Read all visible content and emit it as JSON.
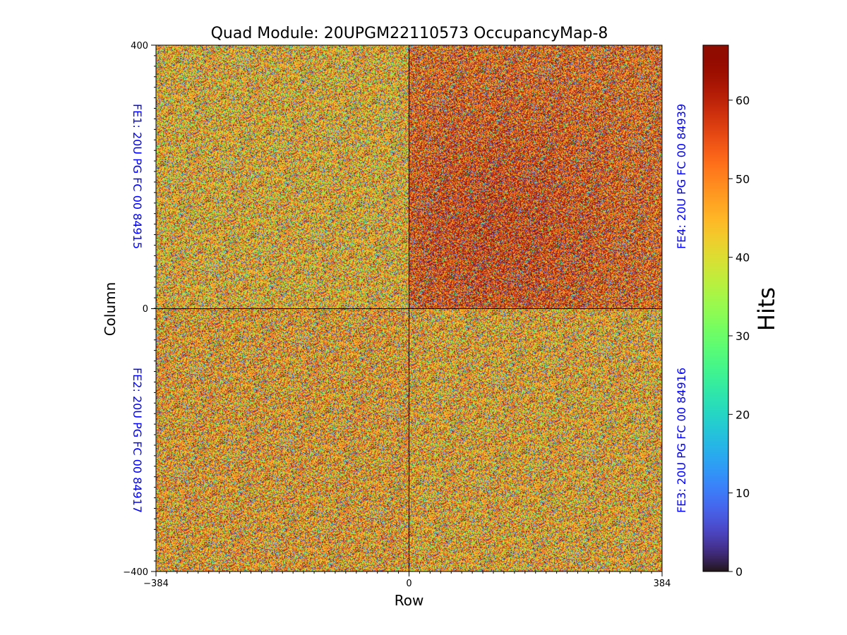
{
  "chart_data": {
    "type": "heatmap",
    "title": "Quad Module: 20UPGM22110573 OccupancyMap-8",
    "xlabel": "Row",
    "ylabel": "Column",
    "xlim": [
      -384,
      384
    ],
    "ylim": [
      -400,
      400
    ],
    "x_ticks": [
      "−384",
      "0",
      "384"
    ],
    "y_ticks": [
      "400",
      "0",
      "−400"
    ],
    "colorbar": {
      "label": "Hits",
      "range": [
        0,
        67
      ],
      "ticks": [
        "0",
        "10",
        "20",
        "30",
        "40",
        "50",
        "60"
      ],
      "colormap": "turbo"
    },
    "front_ends": [
      {
        "id": "FE1",
        "label": "FE1: 20U PG FC 00 84915",
        "quadrant": "top-left",
        "dominant_hits": 45
      },
      {
        "id": "FE2",
        "label": "FE2: 20U PG FC 00 84917",
        "quadrant": "bottom-left",
        "dominant_hits": 47
      },
      {
        "id": "FE3",
        "label": "FE3: 20U PG FC 00 84916",
        "quadrant": "bottom-right",
        "dominant_hits": 46
      },
      {
        "id": "FE4",
        "label": "FE4: 20U PG FC 00 84939",
        "quadrant": "top-right",
        "dominant_hits": 52
      }
    ],
    "divider_color": "#000000",
    "fe_label_color": "#0000ff"
  }
}
